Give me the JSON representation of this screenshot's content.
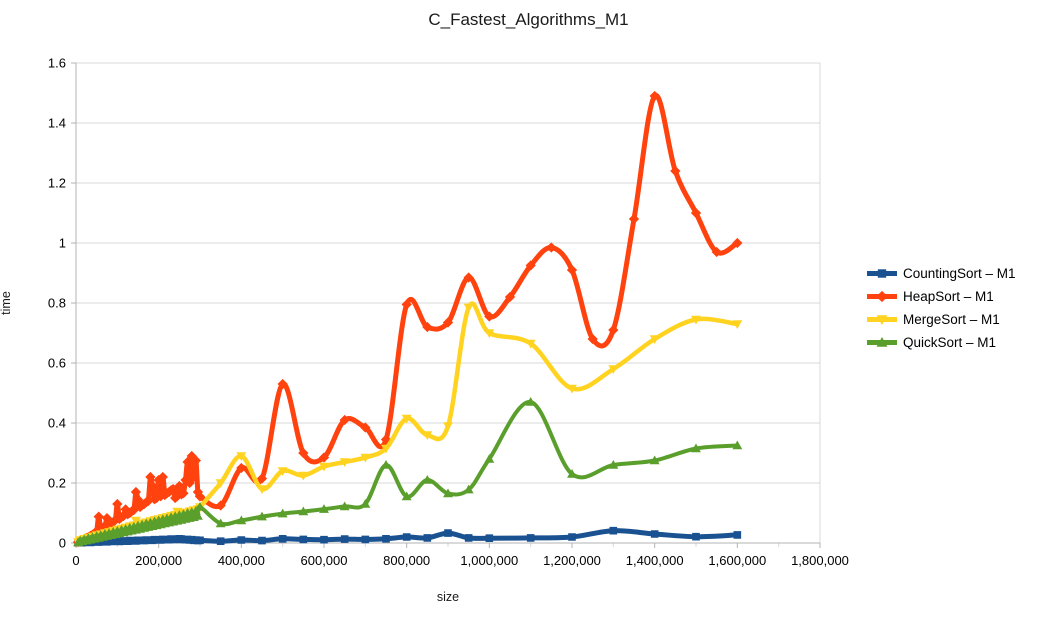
{
  "chart_data": {
    "type": "line",
    "title": "C_Fastest_Algorithms_M1",
    "xlabel": "size",
    "ylabel": "time",
    "xlim": [
      0,
      1800000
    ],
    "ylim": [
      0,
      1.6
    ],
    "grid": "horizontal",
    "legend_position": "right",
    "smoothed_lines": true,
    "axis_color": "#b3b3b3",
    "grid_color": "#d9d9d9",
    "x_ticks": {
      "values": [
        0,
        200000,
        400000,
        600000,
        800000,
        1000000,
        1200000,
        1400000,
        1600000,
        1800000
      ],
      "labels": [
        "0",
        "200,000",
        "400,000",
        "600,000",
        "800,000",
        "1,000,000",
        "1,200,000",
        "1,400,000",
        "1,600,000",
        "1,800,000"
      ]
    },
    "y_ticks": {
      "values": [
        0,
        0.2,
        0.4,
        0.6,
        0.8,
        1.0,
        1.2,
        1.4,
        1.6
      ],
      "labels": [
        "0",
        "0.2",
        "0.4",
        "0.6",
        "0.8",
        "1",
        "1.2",
        "1.4",
        "1.6"
      ]
    },
    "series": [
      {
        "name": "CountingSort – M1",
        "color": "#1A5190",
        "marker": "square",
        "x": [
          5000,
          10000,
          15000,
          20000,
          25000,
          30000,
          35000,
          40000,
          45000,
          50000,
          55000,
          60000,
          65000,
          70000,
          75000,
          80000,
          85000,
          90000,
          95000,
          100000,
          105000,
          110000,
          115000,
          120000,
          125000,
          130000,
          135000,
          140000,
          145000,
          150000,
          155000,
          160000,
          165000,
          170000,
          175000,
          180000,
          185000,
          190000,
          195000,
          200000,
          205000,
          210000,
          215000,
          220000,
          225000,
          230000,
          235000,
          240000,
          245000,
          250000,
          255000,
          260000,
          265000,
          270000,
          275000,
          280000,
          285000,
          290000,
          295000,
          300000,
          350000,
          400000,
          450000,
          500000,
          550000,
          600000,
          650000,
          700000,
          750000,
          800000,
          850000,
          900000,
          950000,
          1000000,
          1100000,
          1200000,
          1300000,
          1400000,
          1500000,
          1600000
        ],
        "y": [
          0.001,
          0.002,
          0.001,
          0.002,
          0.002,
          0.003,
          0.002,
          0.003,
          0.003,
          0.004,
          0.003,
          0.004,
          0.004,
          0.005,
          0.004,
          0.005,
          0.005,
          0.006,
          0.005,
          0.006,
          0.005,
          0.007,
          0.006,
          0.007,
          0.006,
          0.008,
          0.007,
          0.008,
          0.007,
          0.009,
          0.008,
          0.009,
          0.008,
          0.01,
          0.009,
          0.01,
          0.009,
          0.011,
          0.01,
          0.011,
          0.01,
          0.012,
          0.011,
          0.012,
          0.011,
          0.013,
          0.012,
          0.013,
          0.012,
          0.014,
          0.013,
          0.012,
          0.011,
          0.012,
          0.01,
          0.011,
          0.009,
          0.01,
          0.008,
          0.009,
          0.006,
          0.01,
          0.008,
          0.014,
          0.012,
          0.011,
          0.013,
          0.012,
          0.014,
          0.02,
          0.017,
          0.033,
          0.017,
          0.016,
          0.017,
          0.02,
          0.041,
          0.03,
          0.021,
          0.027
        ]
      },
      {
        "name": "HeapSort – M1",
        "color": "#FF420E",
        "marker": "diamond",
        "x": [
          5000,
          10000,
          15000,
          20000,
          25000,
          30000,
          35000,
          40000,
          45000,
          50000,
          55000,
          60000,
          65000,
          70000,
          75000,
          80000,
          85000,
          90000,
          95000,
          100000,
          105000,
          110000,
          115000,
          120000,
          125000,
          130000,
          135000,
          140000,
          145000,
          150000,
          155000,
          160000,
          165000,
          170000,
          175000,
          180000,
          185000,
          190000,
          195000,
          200000,
          205000,
          210000,
          215000,
          220000,
          225000,
          230000,
          235000,
          240000,
          245000,
          250000,
          255000,
          260000,
          265000,
          270000,
          275000,
          280000,
          285000,
          290000,
          295000,
          300000,
          350000,
          400000,
          450000,
          500000,
          550000,
          600000,
          650000,
          700000,
          750000,
          800000,
          850000,
          900000,
          950000,
          1000000,
          1050000,
          1100000,
          1150000,
          1200000,
          1250000,
          1300000,
          1350000,
          1400000,
          1450000,
          1500000,
          1550000,
          1600000
        ],
        "y": [
          0.003,
          0.006,
          0.01,
          0.013,
          0.017,
          0.02,
          0.024,
          0.028,
          0.032,
          0.04,
          0.088,
          0.045,
          0.05,
          0.056,
          0.083,
          0.06,
          0.066,
          0.07,
          0.076,
          0.13,
          0.08,
          0.086,
          0.09,
          0.112,
          0.096,
          0.1,
          0.106,
          0.11,
          0.17,
          0.145,
          0.12,
          0.126,
          0.13,
          0.136,
          0.14,
          0.22,
          0.19,
          0.146,
          0.15,
          0.21,
          0.156,
          0.22,
          0.16,
          0.166,
          0.17,
          0.176,
          0.18,
          0.15,
          0.156,
          0.19,
          0.162,
          0.166,
          0.21,
          0.27,
          0.2,
          0.29,
          0.22,
          0.275,
          0.17,
          0.155,
          0.125,
          0.25,
          0.215,
          0.53,
          0.3,
          0.285,
          0.41,
          0.385,
          0.345,
          0.795,
          0.72,
          0.735,
          0.885,
          0.755,
          0.82,
          0.925,
          0.985,
          0.91,
          0.68,
          0.71,
          1.08,
          1.49,
          1.24,
          1.1,
          0.97,
          1.0
        ]
      },
      {
        "name": "MergeSort – M1",
        "color": "#FFD320",
        "marker": "triangle-down",
        "x": [
          5000,
          10000,
          15000,
          20000,
          25000,
          30000,
          35000,
          40000,
          45000,
          50000,
          55000,
          60000,
          65000,
          70000,
          75000,
          80000,
          85000,
          90000,
          95000,
          100000,
          105000,
          110000,
          115000,
          120000,
          125000,
          130000,
          135000,
          140000,
          145000,
          150000,
          155000,
          160000,
          165000,
          170000,
          175000,
          180000,
          185000,
          190000,
          195000,
          200000,
          205000,
          210000,
          215000,
          220000,
          225000,
          230000,
          235000,
          240000,
          245000,
          250000,
          255000,
          260000,
          265000,
          270000,
          275000,
          280000,
          285000,
          290000,
          295000,
          300000,
          350000,
          400000,
          450000,
          500000,
          550000,
          600000,
          650000,
          700000,
          750000,
          800000,
          850000,
          900000,
          950000,
          1000000,
          1100000,
          1200000,
          1300000,
          1400000,
          1500000,
          1600000
        ],
        "y": [
          0.003,
          0.01,
          0.006,
          0.014,
          0.01,
          0.018,
          0.013,
          0.022,
          0.016,
          0.026,
          0.019,
          0.029,
          0.023,
          0.033,
          0.026,
          0.037,
          0.029,
          0.041,
          0.032,
          0.045,
          0.036,
          0.048,
          0.039,
          0.052,
          0.042,
          0.056,
          0.045,
          0.059,
          0.075,
          0.062,
          0.049,
          0.066,
          0.053,
          0.069,
          0.056,
          0.073,
          0.059,
          0.077,
          0.062,
          0.08,
          0.066,
          0.084,
          0.069,
          0.087,
          0.072,
          0.091,
          0.075,
          0.094,
          0.105,
          0.079,
          0.098,
          0.082,
          0.102,
          0.085,
          0.106,
          0.089,
          0.11,
          0.092,
          0.113,
          0.12,
          0.2,
          0.29,
          0.18,
          0.24,
          0.225,
          0.255,
          0.27,
          0.285,
          0.315,
          0.415,
          0.36,
          0.39,
          0.785,
          0.7,
          0.665,
          0.515,
          0.58,
          0.68,
          0.745,
          0.73
        ]
      },
      {
        "name": "QuickSort – M1",
        "color": "#5A9E2C",
        "marker": "triangle-up",
        "x": [
          5000,
          10000,
          15000,
          20000,
          25000,
          30000,
          35000,
          40000,
          45000,
          50000,
          55000,
          60000,
          65000,
          70000,
          75000,
          80000,
          85000,
          90000,
          95000,
          100000,
          105000,
          110000,
          115000,
          120000,
          125000,
          130000,
          135000,
          140000,
          145000,
          150000,
          155000,
          160000,
          165000,
          170000,
          175000,
          180000,
          185000,
          190000,
          195000,
          200000,
          205000,
          210000,
          215000,
          220000,
          225000,
          230000,
          235000,
          240000,
          245000,
          250000,
          255000,
          260000,
          265000,
          270000,
          275000,
          280000,
          285000,
          290000,
          295000,
          300000,
          350000,
          400000,
          450000,
          500000,
          550000,
          600000,
          650000,
          700000,
          750000,
          800000,
          850000,
          900000,
          950000,
          1000000,
          1100000,
          1200000,
          1300000,
          1400000,
          1500000,
          1600000
        ],
        "y": [
          0.002,
          0.008,
          0.005,
          0.012,
          0.008,
          0.016,
          0.011,
          0.019,
          0.014,
          0.023,
          0.017,
          0.026,
          0.02,
          0.03,
          0.023,
          0.033,
          0.026,
          0.037,
          0.029,
          0.04,
          0.032,
          0.044,
          0.035,
          0.047,
          0.038,
          0.051,
          0.041,
          0.054,
          0.044,
          0.058,
          0.047,
          0.061,
          0.05,
          0.065,
          0.053,
          0.068,
          0.056,
          0.072,
          0.059,
          0.075,
          0.062,
          0.079,
          0.065,
          0.082,
          0.068,
          0.086,
          0.071,
          0.089,
          0.074,
          0.093,
          0.077,
          0.096,
          0.08,
          0.1,
          0.083,
          0.103,
          0.086,
          0.107,
          0.09,
          0.12,
          0.065,
          0.075,
          0.088,
          0.098,
          0.105,
          0.113,
          0.122,
          0.13,
          0.26,
          0.155,
          0.21,
          0.165,
          0.178,
          0.28,
          0.47,
          0.23,
          0.26,
          0.275,
          0.315,
          0.325
        ]
      }
    ]
  }
}
